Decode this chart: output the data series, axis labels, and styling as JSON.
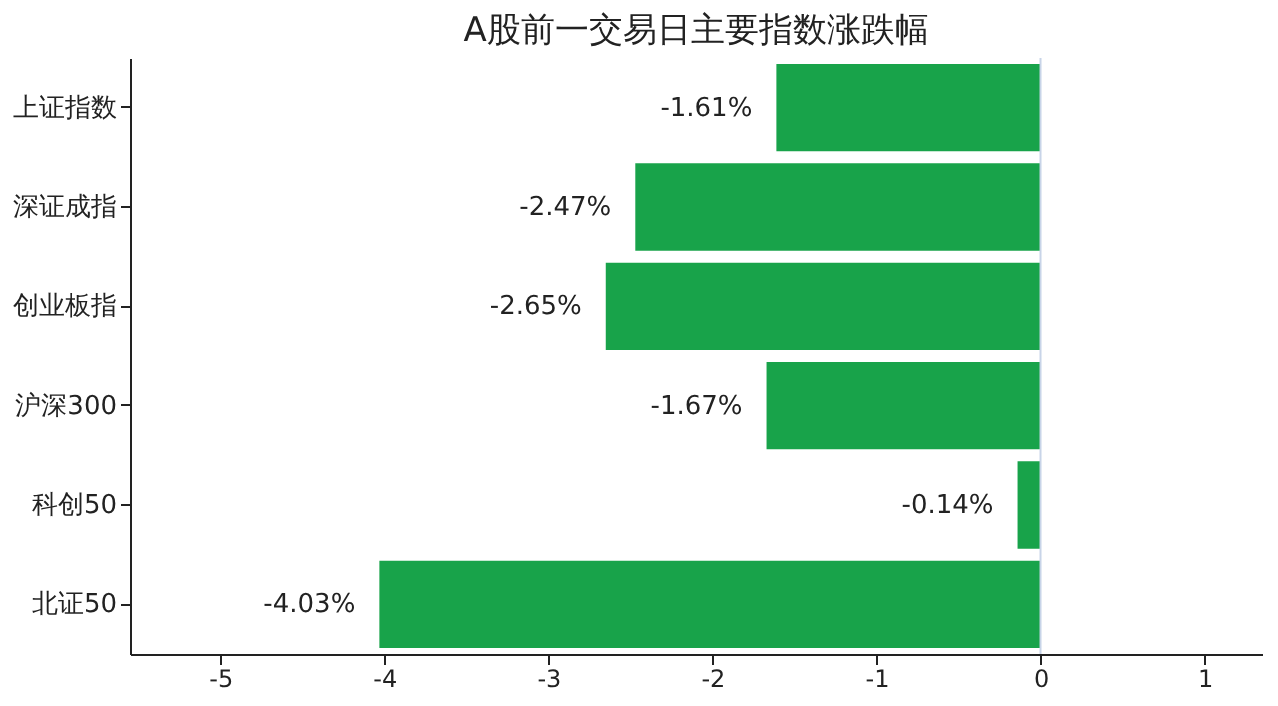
{
  "chart_data": {
    "type": "bar",
    "orientation": "horizontal",
    "title": "A股前一交易日主要指数涨跌幅",
    "categories": [
      "上证指数",
      "深证成指",
      "创业板指",
      "沪深300",
      "科创50",
      "北证50"
    ],
    "values": [
      -1.61,
      -2.47,
      -2.65,
      -1.67,
      -0.14,
      -4.03
    ],
    "value_labels": [
      "-1.61%",
      "-2.47%",
      "-2.65%",
      "-1.67%",
      "-0.14%",
      "-4.03%"
    ],
    "color": "#18a34a",
    "xlim": [
      -5.55,
      1.35
    ],
    "xticks": [
      -5,
      -4,
      -3,
      -2,
      -1,
      0,
      1
    ],
    "ref_lines": [
      {
        "axis": "x",
        "value": 0,
        "color": "#c8d4e8"
      }
    ],
    "grid": false
  }
}
